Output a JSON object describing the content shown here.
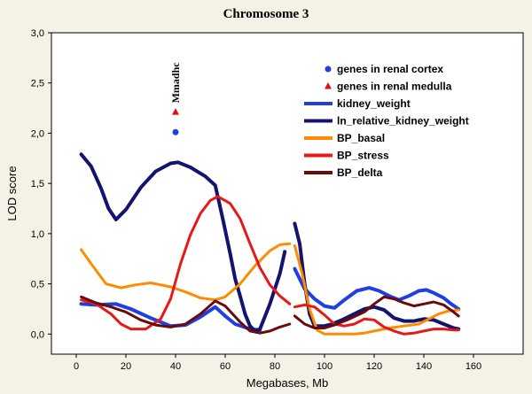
{
  "chart_data": {
    "type": "line",
    "title": "Chromosome 3",
    "xlabel": "Megabases, Mb",
    "ylabel": "LOD score",
    "xlim": [
      -10,
      180
    ],
    "ylim": [
      -0.2,
      3.0
    ],
    "xticks": [
      0,
      20,
      40,
      60,
      80,
      100,
      120,
      140,
      160
    ],
    "xtick_labels": [
      "0",
      "20",
      "40",
      "60",
      "80",
      "100",
      "120",
      "140",
      "160"
    ],
    "yticks": [
      0.0,
      0.5,
      1.0,
      1.5,
      2.0,
      2.5,
      3.0
    ],
    "ytick_labels": [
      "0,0",
      "0,5",
      "1,0",
      "1,5",
      "2,0",
      "2,5",
      "3,0"
    ],
    "grid": false,
    "legend_position": "top-right",
    "markers": [
      {
        "name": "genes in renal cortex",
        "shape": "circle",
        "color": "#1f3fe0",
        "x": 40,
        "y": 2.01
      },
      {
        "name": "genes in renal medulla",
        "shape": "triangle",
        "color": "#e01010",
        "x": 40,
        "y": 2.21
      }
    ],
    "annotation": {
      "text": "Mmadhc",
      "x": 40,
      "y": 2.3
    },
    "series": [
      {
        "name": "kidney_weight",
        "color": "#1f3fe0",
        "width": 4,
        "segments": [
          [
            [
              2,
              0.3
            ],
            [
              8,
              0.29
            ],
            [
              16,
              0.3
            ],
            [
              22,
              0.25
            ],
            [
              30,
              0.16
            ],
            [
              38,
              0.08
            ],
            [
              44,
              0.09
            ],
            [
              50,
              0.17
            ],
            [
              56,
              0.27
            ],
            [
              60,
              0.18
            ],
            [
              64,
              0.1
            ],
            [
              70,
              0.05
            ],
            [
              74,
              0.04
            ]
          ],
          [
            [
              88,
              0.65
            ],
            [
              92,
              0.45
            ],
            [
              96,
              0.35
            ],
            [
              100,
              0.28
            ],
            [
              104,
              0.26
            ],
            [
              108,
              0.34
            ],
            [
              113,
              0.43
            ],
            [
              118,
              0.46
            ],
            [
              122,
              0.43
            ],
            [
              126,
              0.38
            ],
            [
              130,
              0.34
            ],
            [
              134,
              0.38
            ],
            [
              138,
              0.43
            ],
            [
              141,
              0.44
            ],
            [
              144,
              0.41
            ],
            [
              148,
              0.36
            ],
            [
              151,
              0.3
            ],
            [
              154,
              0.25
            ]
          ]
        ]
      },
      {
        "name": "ln_relative_kidney_weight",
        "color": "#14146e",
        "width": 4,
        "segments": [
          [
            [
              2,
              1.79
            ],
            [
              6,
              1.67
            ],
            [
              10,
              1.45
            ],
            [
              13,
              1.25
            ],
            [
              16,
              1.14
            ],
            [
              20,
              1.24
            ],
            [
              26,
              1.46
            ],
            [
              32,
              1.62
            ],
            [
              38,
              1.7
            ],
            [
              41,
              1.71
            ],
            [
              46,
              1.66
            ],
            [
              52,
              1.57
            ],
            [
              56,
              1.48
            ],
            [
              59,
              1.15
            ],
            [
              62,
              0.8
            ],
            [
              64,
              0.55
            ],
            [
              66,
              0.38
            ],
            [
              68,
              0.2
            ],
            [
              70,
              0.08
            ],
            [
              72,
              0.03
            ],
            [
              74,
              0.05
            ],
            [
              78,
              0.3
            ],
            [
              82,
              0.6
            ],
            [
              84,
              0.82
            ]
          ],
          [
            [
              88,
              1.1
            ],
            [
              90,
              0.9
            ],
            [
              92,
              0.5
            ],
            [
              94,
              0.2
            ],
            [
              96,
              0.08
            ],
            [
              100,
              0.08
            ],
            [
              103,
              0.1
            ],
            [
              107,
              0.14
            ],
            [
              112,
              0.2
            ],
            [
              116,
              0.25
            ],
            [
              120,
              0.27
            ],
            [
              124,
              0.24
            ],
            [
              128,
              0.16
            ],
            [
              132,
              0.13
            ],
            [
              136,
              0.13
            ],
            [
              140,
              0.15
            ],
            [
              144,
              0.14
            ],
            [
              148,
              0.1
            ],
            [
              152,
              0.06
            ],
            [
              154,
              0.05
            ]
          ]
        ]
      },
      {
        "name": "BP_basal",
        "color": "#ff8c00",
        "width": 3,
        "segments": [
          [
            [
              2,
              0.84
            ],
            [
              6,
              0.7
            ],
            [
              12,
              0.5
            ],
            [
              18,
              0.46
            ],
            [
              24,
              0.49
            ],
            [
              30,
              0.51
            ],
            [
              38,
              0.47
            ],
            [
              44,
              0.42
            ],
            [
              50,
              0.36
            ],
            [
              56,
              0.34
            ],
            [
              60,
              0.37
            ],
            [
              66,
              0.5
            ],
            [
              72,
              0.68
            ],
            [
              78,
              0.83
            ],
            [
              82,
              0.89
            ],
            [
              86,
              0.9
            ]
          ],
          [
            [
              88,
              0.88
            ],
            [
              91,
              0.6
            ],
            [
              94,
              0.25
            ],
            [
              97,
              0.04
            ],
            [
              100,
              0.0
            ],
            [
              106,
              0.0
            ],
            [
              112,
              0.0
            ],
            [
              116,
              0.01
            ],
            [
              120,
              0.03
            ],
            [
              126,
              0.06
            ],
            [
              132,
              0.08
            ],
            [
              138,
              0.1
            ],
            [
              142,
              0.15
            ],
            [
              146,
              0.2
            ],
            [
              150,
              0.23
            ],
            [
              154,
              0.24
            ]
          ]
        ]
      },
      {
        "name": "BP_stress",
        "color": "#e81818",
        "width": 3,
        "segments": [
          [
            [
              2,
              0.34
            ],
            [
              8,
              0.3
            ],
            [
              14,
              0.2
            ],
            [
              18,
              0.1
            ],
            [
              22,
              0.05
            ],
            [
              28,
              0.05
            ],
            [
              34,
              0.15
            ],
            [
              38,
              0.35
            ],
            [
              42,
              0.7
            ],
            [
              46,
              0.99
            ],
            [
              50,
              1.2
            ],
            [
              54,
              1.33
            ],
            [
              57,
              1.37
            ],
            [
              62,
              1.3
            ],
            [
              66,
              1.15
            ],
            [
              70,
              0.9
            ],
            [
              74,
              0.66
            ],
            [
              78,
              0.49
            ],
            [
              82,
              0.38
            ],
            [
              86,
              0.3
            ]
          ],
          [
            [
              88,
              0.27
            ],
            [
              92,
              0.29
            ],
            [
              96,
              0.27
            ],
            [
              100,
              0.19
            ],
            [
              104,
              0.1
            ],
            [
              108,
              0.08
            ],
            [
              112,
              0.1
            ],
            [
              116,
              0.15
            ],
            [
              120,
              0.14
            ],
            [
              124,
              0.07
            ],
            [
              128,
              0.03
            ],
            [
              132,
              0.0
            ],
            [
              136,
              0.01
            ],
            [
              140,
              0.03
            ],
            [
              144,
              0.05
            ],
            [
              148,
              0.05
            ],
            [
              152,
              0.04
            ],
            [
              154,
              0.04
            ]
          ]
        ]
      },
      {
        "name": "BP_delta",
        "color": "#6a0a0a",
        "width": 3,
        "segments": [
          [
            [
              2,
              0.37
            ],
            [
              8,
              0.31
            ],
            [
              14,
              0.27
            ],
            [
              20,
              0.22
            ],
            [
              26,
              0.14
            ],
            [
              32,
              0.09
            ],
            [
              38,
              0.07
            ],
            [
              44,
              0.1
            ],
            [
              50,
              0.2
            ],
            [
              56,
              0.33
            ],
            [
              60,
              0.28
            ],
            [
              66,
              0.12
            ],
            [
              70,
              0.03
            ],
            [
              74,
              0.01
            ],
            [
              78,
              0.03
            ],
            [
              82,
              0.07
            ],
            [
              86,
              0.1
            ]
          ],
          [
            [
              88,
              0.18
            ],
            [
              92,
              0.1
            ],
            [
              96,
              0.06
            ],
            [
              100,
              0.06
            ],
            [
              104,
              0.09
            ],
            [
              110,
              0.15
            ],
            [
              116,
              0.22
            ],
            [
              120,
              0.3
            ],
            [
              124,
              0.37
            ],
            [
              128,
              0.35
            ],
            [
              132,
              0.31
            ],
            [
              136,
              0.28
            ],
            [
              140,
              0.3
            ],
            [
              144,
              0.32
            ],
            [
              148,
              0.29
            ],
            [
              152,
              0.22
            ],
            [
              154,
              0.18
            ]
          ]
        ]
      }
    ],
    "legend": [
      {
        "label": "genes in renal cortex",
        "kind": "circle",
        "color": "#1f3fe0"
      },
      {
        "label": "genes in renal medulla",
        "kind": "triangle",
        "color": "#e01010"
      },
      {
        "label": "kidney_weight",
        "kind": "line",
        "color": "#1f3fe0"
      },
      {
        "label": "ln_relative_kidney_weight",
        "kind": "line",
        "color": "#14146e"
      },
      {
        "label": "BP_basal",
        "kind": "line",
        "color": "#ff8c00"
      },
      {
        "label": "BP_stress",
        "kind": "line",
        "color": "#e81818"
      },
      {
        "label": "BP_delta",
        "kind": "line",
        "color": "#6a0a0a"
      }
    ]
  }
}
